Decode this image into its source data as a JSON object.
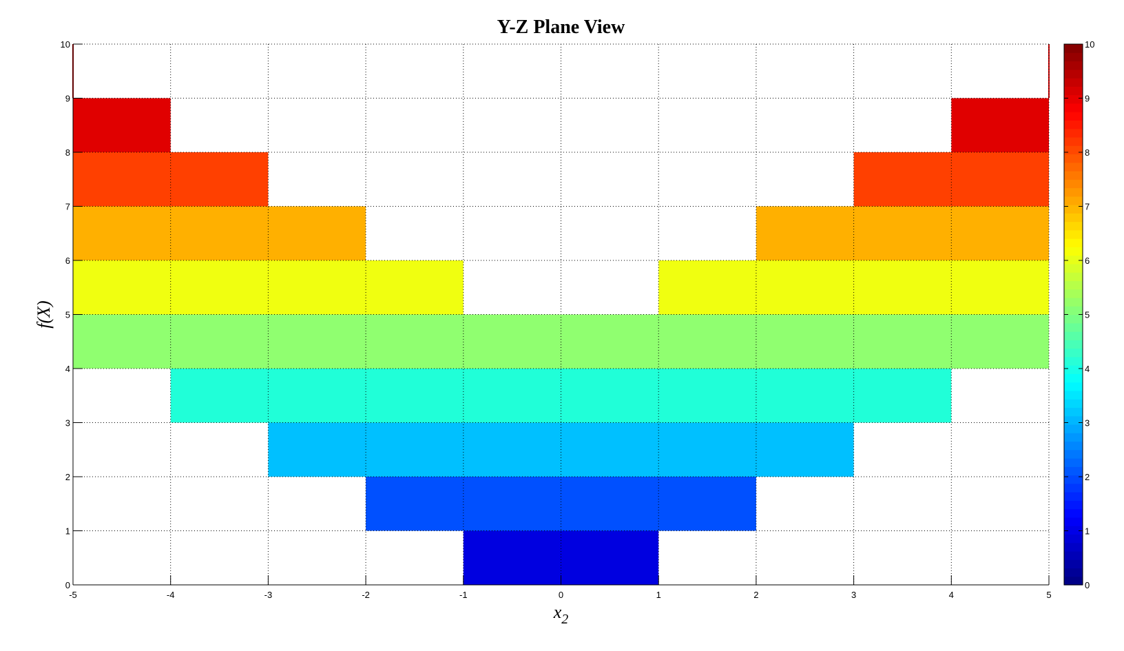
{
  "chart_data": {
    "type": "heatmap",
    "title": "Y-Z Plane View",
    "xlabel": "x_2",
    "ylabel": "f(X)",
    "xlim": [
      -5,
      5
    ],
    "ylim": [
      0,
      10
    ],
    "xticks": [
      -5,
      -4,
      -3,
      -2,
      -1,
      0,
      1,
      2,
      3,
      4,
      5
    ],
    "yticks": [
      0,
      1,
      2,
      3,
      4,
      5,
      6,
      7,
      8,
      9,
      10
    ],
    "grid": true,
    "colormap": "jet",
    "colorbar": {
      "range": [
        0,
        10
      ],
      "ticks": [
        0,
        1,
        2,
        3,
        4,
        5,
        6,
        7,
        8,
        9,
        10
      ],
      "placement": "right"
    },
    "bands": [
      {
        "y": [
          0,
          1
        ],
        "x_ranges": [
          [
            -1,
            1
          ]
        ],
        "color": "#0000e0"
      },
      {
        "y": [
          1,
          2
        ],
        "x_ranges": [
          [
            -2,
            2
          ]
        ],
        "color": "#0050ff"
      },
      {
        "y": [
          2,
          3
        ],
        "x_ranges": [
          [
            -3,
            3
          ]
        ],
        "color": "#00c0ff"
      },
      {
        "y": [
          3,
          4
        ],
        "x_ranges": [
          [
            -4,
            4
          ]
        ],
        "color": "#20ffd8"
      },
      {
        "y": [
          4,
          5
        ],
        "x_ranges": [
          [
            -5,
            5
          ]
        ],
        "color": "#90ff70"
      },
      {
        "y": [
          5,
          6
        ],
        "x_ranges": [
          [
            -5,
            -1
          ],
          [
            1,
            5
          ]
        ],
        "color": "#f0ff10"
      },
      {
        "y": [
          6,
          7
        ],
        "x_ranges": [
          [
            -5,
            -2
          ],
          [
            2,
            5
          ]
        ],
        "color": "#ffb000"
      },
      {
        "y": [
          7,
          8
        ],
        "x_ranges": [
          [
            -5,
            -3
          ],
          [
            3,
            5
          ]
        ],
        "color": "#ff4000"
      },
      {
        "y": [
          8,
          9
        ],
        "x_ranges": [
          [
            -5,
            -4
          ],
          [
            4,
            5
          ]
        ],
        "color": "#e00000"
      },
      {
        "y": [
          9,
          10
        ],
        "x_ranges": [
          [
            -5,
            -5
          ],
          [
            5,
            5
          ]
        ],
        "color": "#c00000"
      }
    ]
  }
}
